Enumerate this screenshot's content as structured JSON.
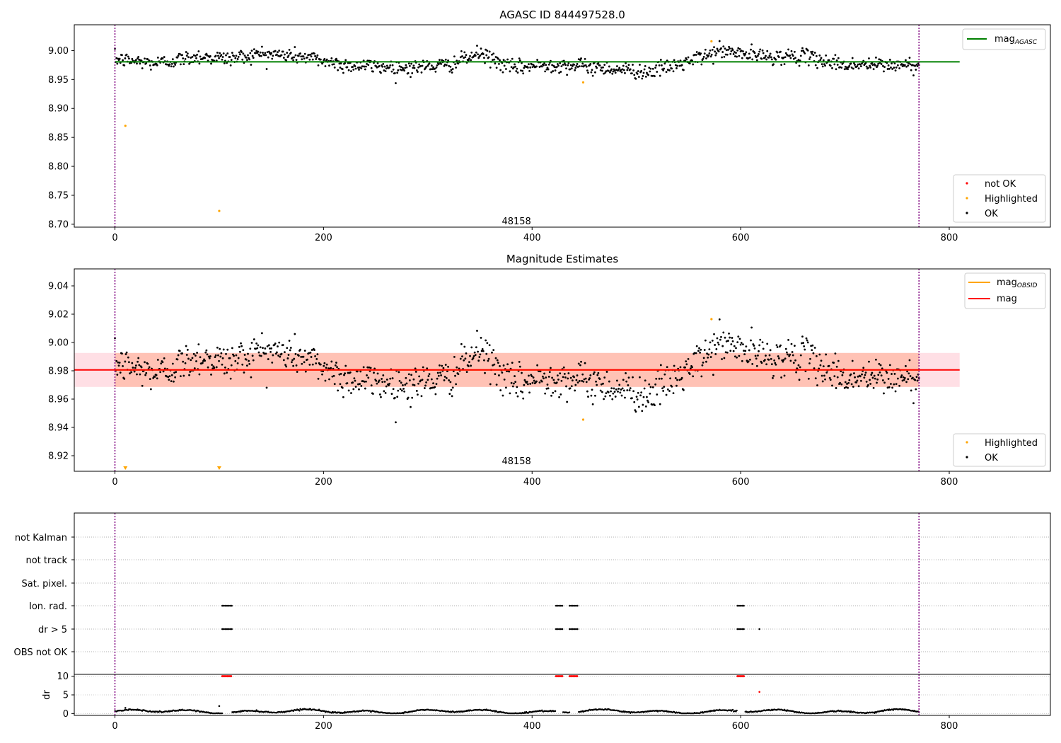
{
  "chart_data": [
    {
      "type": "scatter",
      "title": "AGASC ID 844497528.0",
      "xlabel": "",
      "ylabel": "",
      "xlim": [
        -39,
        897
      ],
      "ylim": [
        8.695,
        9.0445
      ],
      "xticks": [
        0,
        200,
        400,
        600,
        800
      ],
      "yticks": [
        8.7,
        8.75,
        8.8,
        8.85,
        8.9,
        8.95,
        9.0
      ],
      "ytick_labels": [
        "8.70",
        "8.75",
        "8.80",
        "8.85",
        "8.90",
        "8.95",
        "9.00"
      ],
      "vlines": [
        0,
        771
      ],
      "vline_color": "#800080",
      "obsid_label": {
        "text": "48158",
        "x": 385,
        "y": 8.706
      },
      "hlines": [
        {
          "name": "mag_agasc",
          "y": 8.9805,
          "x0": 0,
          "x1": 810,
          "color": "#008000"
        }
      ],
      "legend_lines": [
        {
          "label": "mag",
          "sub": "AGASC",
          "color": "#008000"
        }
      ],
      "legend_points": [
        {
          "label": "not OK",
          "color": "#ff0000"
        },
        {
          "label": "Highlighted",
          "color": "#ffa500"
        },
        {
          "label": "OK",
          "color": "#000000"
        }
      ],
      "series": [
        {
          "name": "OK",
          "color": "#000000",
          "ok_from": 0,
          "ok_to": 771
        },
        {
          "name": "Highlighted",
          "color": "#ffa500",
          "points": [
            [
              10,
              8.87
            ],
            [
              100,
              8.723
            ],
            [
              449,
              8.945
            ],
            [
              572,
              9.016
            ]
          ]
        }
      ]
    },
    {
      "type": "scatter",
      "title": "Magnitude Estimates",
      "xlabel": "",
      "ylabel": "",
      "xlim": [
        -39,
        897
      ],
      "ylim": [
        8.909,
        9.052
      ],
      "xticks": [
        0,
        200,
        400,
        600,
        800
      ],
      "yticks": [
        8.92,
        8.94,
        8.96,
        8.98,
        9.0,
        9.02,
        9.04
      ],
      "ytick_labels": [
        "8.92",
        "8.94",
        "8.96",
        "8.98",
        "9.00",
        "9.02",
        "9.04"
      ],
      "vlines": [
        0,
        771
      ],
      "vline_color": "#800080",
      "obsid_label": {
        "text": "48158",
        "x": 385,
        "y": 8.9135
      },
      "bands": [
        {
          "y0": 8.9686,
          "y1": 8.9926,
          "x0": -39,
          "x1": 810,
          "color": "#ffc0cb",
          "opacity": 0.5
        },
        {
          "y0": 8.9686,
          "y1": 8.9926,
          "x0": 0,
          "x1": 771,
          "color": "#ffa07a",
          "opacity": 0.45
        }
      ],
      "hlines": [
        {
          "name": "mag_obsid",
          "y": 8.9806,
          "x0": 0,
          "x1": 771,
          "color": "#ffa500"
        },
        {
          "name": "mag",
          "y": 8.9806,
          "x0": -39,
          "x1": 810,
          "color": "#ff0000"
        }
      ],
      "legend_lines": [
        {
          "label": "mag",
          "sub": "OBSID",
          "color": "#ffa500"
        },
        {
          "label": "mag",
          "sub": "",
          "color": "#ff0000"
        }
      ],
      "legend_points": [
        {
          "label": "Highlighted",
          "color": "#ffa500"
        },
        {
          "label": "OK",
          "color": "#000000"
        }
      ],
      "series": [
        {
          "name": "OK",
          "color": "#000000",
          "ok_from": 0,
          "ok_to": 771
        },
        {
          "name": "Highlighted",
          "color": "#ffa500",
          "points": [
            [
              449,
              8.9455
            ],
            [
              572,
              9.0165
            ]
          ]
        },
        {
          "name": "Highlighted (below range)",
          "color": "#ffa500",
          "marker": "triangle-down",
          "points": [
            [
              10,
              8.91
            ],
            [
              100,
              8.91
            ]
          ]
        }
      ]
    },
    {
      "type": "scatter",
      "title": "",
      "xlabel": "",
      "ylabel": "",
      "xlim": [
        -39,
        897
      ],
      "xticks": [
        0,
        200,
        400,
        600,
        800
      ],
      "vlines": [
        0,
        771
      ],
      "vline_color": "#800080",
      "flag_labels": [
        "not Kalman",
        "not track",
        "Sat. pixel.",
        "Ion. rad.",
        "dr > 5",
        "OBS not OK"
      ],
      "flags": {
        "Ion. rad.": [
          [
            103,
            112
          ],
          [
            423,
            429
          ],
          [
            436,
            444
          ],
          [
            597,
            604
          ]
        ],
        "dr > 5": [
          [
            103,
            112
          ],
          [
            423,
            429
          ],
          [
            436,
            444
          ],
          [
            597,
            604
          ],
          [
            618,
            618
          ]
        ]
      }
    },
    {
      "type": "scatter",
      "title": "",
      "xlabel": "",
      "ylabel": "dr",
      "xlim": [
        -39,
        897
      ],
      "ylim": [
        -0.5,
        10.5
      ],
      "xticks": [
        0,
        200,
        400,
        600,
        800
      ],
      "yticks": [
        0,
        5,
        10
      ],
      "ytick_labels": [
        "0",
        "5",
        "10"
      ],
      "vlines": [
        0,
        771
      ],
      "vline_color": "#800080",
      "series": [
        {
          "name": "dr",
          "color": "#000000",
          "baseline_from": 0,
          "baseline_to": 771,
          "gaps": [
            [
              103,
              112
            ],
            [
              423,
              429
            ],
            [
              436,
              444
            ],
            [
              597,
              604
            ]
          ]
        },
        {
          "name": "dr > 5",
          "color": "#ff0000",
          "clipped_y": 10,
          "clipped_ranges": [
            [
              103,
              112
            ],
            [
              423,
              429
            ],
            [
              436,
              444
            ],
            [
              597,
              604
            ]
          ],
          "points": [
            [
              618,
              5.8
            ]
          ]
        },
        {
          "name": "isolated",
          "color": "#000000",
          "points": [
            [
              100,
              2.0
            ],
            [
              10,
              1.5
            ]
          ]
        }
      ]
    }
  ]
}
